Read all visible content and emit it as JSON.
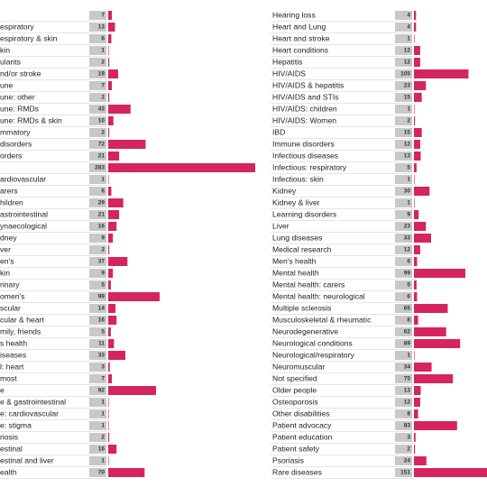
{
  "chart_data": [
    {
      "type": "bar",
      "color": "#d6245e",
      "categories": [
        null,
        "espiratory",
        "espiratory & skin",
        "kin",
        "ulants",
        "nd/or stroke",
        "une",
        "une: other",
        "une: RMDs",
        "une: RMDs & skin",
        "mmatory",
        "disorders",
        "orders",
        null,
        "ardiovascular",
        "arers",
        "hildren",
        "astrointestinal",
        "ynaecological",
        "dney",
        "ver",
        "en's",
        "kin",
        "rinary",
        "omen's",
        "scular",
        "cular & heart",
        "mily, friends",
        "s health",
        "iseases",
        "l: heart",
        "most",
        "e",
        "e & gastrointestinal",
        "e: cardiovascular",
        "e: stigma",
        "riosis",
        "estinal",
        "estinal and liver",
        "ealth"
      ],
      "values": [
        7,
        13,
        6,
        1,
        2,
        19,
        7,
        2,
        43,
        10,
        2,
        72,
        21,
        283,
        1,
        6,
        29,
        21,
        16,
        9,
        2,
        37,
        9,
        5,
        99,
        14,
        16,
        5,
        11,
        33,
        3,
        7,
        92,
        1,
        1,
        1,
        2,
        16,
        1,
        70
      ]
    },
    {
      "type": "bar",
      "color": "#d6245e",
      "categories": [
        "Hearing loss",
        "Heart and Lung",
        "Heart and stroke",
        "Heart conditions",
        "Hepatitis",
        "HIV/AIDS",
        "HIV/AIDS & hepatitis",
        "HIV/AIDS and STIs",
        "HIV/AIDS: children",
        "HIV/AIDS: Women",
        "IBD",
        "Immune disorders",
        "Infectious diseases",
        "Infectious: respiratory",
        "Infectious: skin",
        "Kidney",
        "Kidney & liver",
        "Learning disorders",
        "Liver",
        "Lung diseases",
        "Medical research",
        "Men's health",
        "Mental health",
        "Mental health: carers",
        "Mental health: neurological",
        "Multiple sclerosis",
        "Musculoskeletal & rheumatic",
        "Neurodegenerative",
        "Neurological conditions",
        "Neurological/respiratory",
        "Neuromuscular",
        "Not specified",
        "Older people",
        "Osteoporosis",
        "Other disabilities",
        "Patient advocacy",
        "Patient education",
        "Patient safety",
        "Psoriasis",
        "Rare diseases"
      ],
      "values": [
        4,
        4,
        1,
        12,
        12,
        105,
        23,
        15,
        1,
        2,
        15,
        12,
        13,
        5,
        1,
        30,
        1,
        9,
        23,
        33,
        12,
        6,
        99,
        5,
        6,
        65,
        8,
        62,
        89,
        1,
        34,
        75,
        13,
        12,
        8,
        83,
        3,
        2,
        24,
        151
      ]
    }
  ]
}
